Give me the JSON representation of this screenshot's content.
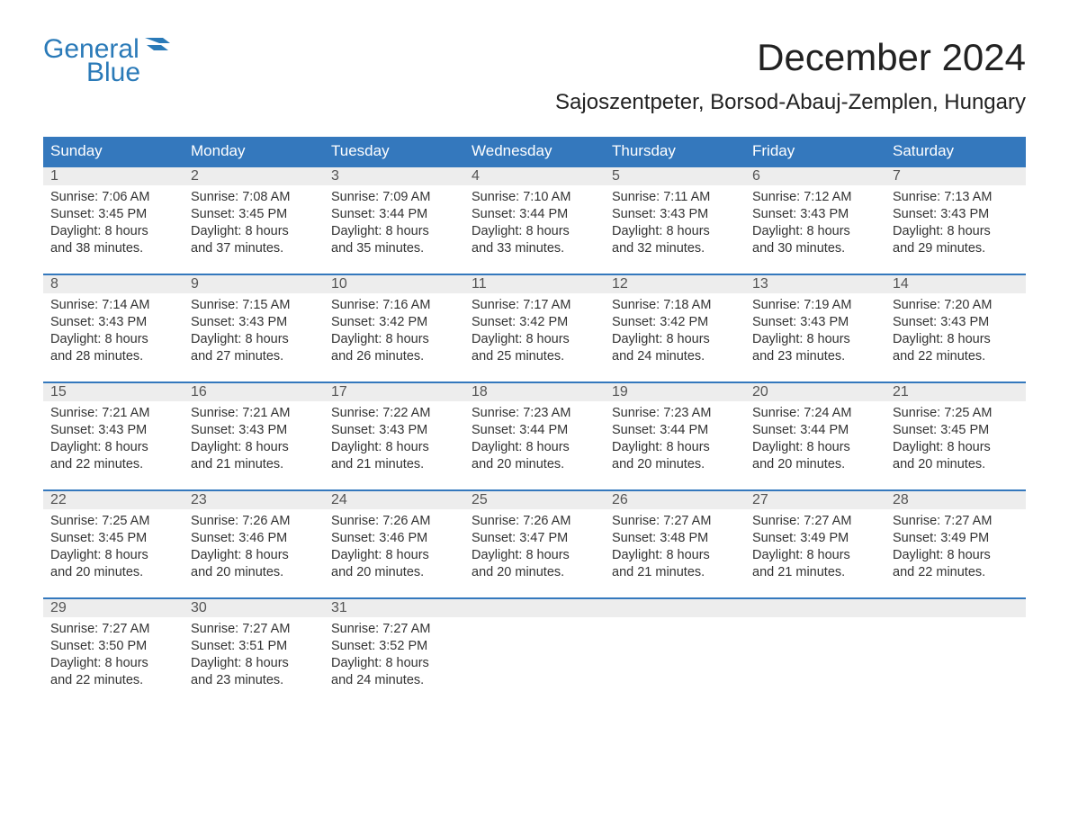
{
  "brand": {
    "word1": "General",
    "word2": "Blue",
    "color": "#2a7ab8"
  },
  "title": "December 2024",
  "location": "Sajoszentpeter, Borsod-Abauj-Zemplen, Hungary",
  "colors": {
    "header_bg": "#3478bd",
    "header_text": "#ffffff",
    "daynum_bg": "#ededed",
    "text": "#333333",
    "page_bg": "#ffffff",
    "rule": "#3478bd"
  },
  "typography": {
    "title_fontsize": 42,
    "location_fontsize": 24,
    "dow_fontsize": 17,
    "body_fontsize": 14.5,
    "font_family": "Arial"
  },
  "daysOfWeek": [
    "Sunday",
    "Monday",
    "Tuesday",
    "Wednesday",
    "Thursday",
    "Friday",
    "Saturday"
  ],
  "weeks": [
    [
      {
        "n": "1",
        "sunrise": "Sunrise: 7:06 AM",
        "sunset": "Sunset: 3:45 PM",
        "dl1": "Daylight: 8 hours",
        "dl2": "and 38 minutes."
      },
      {
        "n": "2",
        "sunrise": "Sunrise: 7:08 AM",
        "sunset": "Sunset: 3:45 PM",
        "dl1": "Daylight: 8 hours",
        "dl2": "and 37 minutes."
      },
      {
        "n": "3",
        "sunrise": "Sunrise: 7:09 AM",
        "sunset": "Sunset: 3:44 PM",
        "dl1": "Daylight: 8 hours",
        "dl2": "and 35 minutes."
      },
      {
        "n": "4",
        "sunrise": "Sunrise: 7:10 AM",
        "sunset": "Sunset: 3:44 PM",
        "dl1": "Daylight: 8 hours",
        "dl2": "and 33 minutes."
      },
      {
        "n": "5",
        "sunrise": "Sunrise: 7:11 AM",
        "sunset": "Sunset: 3:43 PM",
        "dl1": "Daylight: 8 hours",
        "dl2": "and 32 minutes."
      },
      {
        "n": "6",
        "sunrise": "Sunrise: 7:12 AM",
        "sunset": "Sunset: 3:43 PM",
        "dl1": "Daylight: 8 hours",
        "dl2": "and 30 minutes."
      },
      {
        "n": "7",
        "sunrise": "Sunrise: 7:13 AM",
        "sunset": "Sunset: 3:43 PM",
        "dl1": "Daylight: 8 hours",
        "dl2": "and 29 minutes."
      }
    ],
    [
      {
        "n": "8",
        "sunrise": "Sunrise: 7:14 AM",
        "sunset": "Sunset: 3:43 PM",
        "dl1": "Daylight: 8 hours",
        "dl2": "and 28 minutes."
      },
      {
        "n": "9",
        "sunrise": "Sunrise: 7:15 AM",
        "sunset": "Sunset: 3:43 PM",
        "dl1": "Daylight: 8 hours",
        "dl2": "and 27 minutes."
      },
      {
        "n": "10",
        "sunrise": "Sunrise: 7:16 AM",
        "sunset": "Sunset: 3:42 PM",
        "dl1": "Daylight: 8 hours",
        "dl2": "and 26 minutes."
      },
      {
        "n": "11",
        "sunrise": "Sunrise: 7:17 AM",
        "sunset": "Sunset: 3:42 PM",
        "dl1": "Daylight: 8 hours",
        "dl2": "and 25 minutes."
      },
      {
        "n": "12",
        "sunrise": "Sunrise: 7:18 AM",
        "sunset": "Sunset: 3:42 PM",
        "dl1": "Daylight: 8 hours",
        "dl2": "and 24 minutes."
      },
      {
        "n": "13",
        "sunrise": "Sunrise: 7:19 AM",
        "sunset": "Sunset: 3:43 PM",
        "dl1": "Daylight: 8 hours",
        "dl2": "and 23 minutes."
      },
      {
        "n": "14",
        "sunrise": "Sunrise: 7:20 AM",
        "sunset": "Sunset: 3:43 PM",
        "dl1": "Daylight: 8 hours",
        "dl2": "and 22 minutes."
      }
    ],
    [
      {
        "n": "15",
        "sunrise": "Sunrise: 7:21 AM",
        "sunset": "Sunset: 3:43 PM",
        "dl1": "Daylight: 8 hours",
        "dl2": "and 22 minutes."
      },
      {
        "n": "16",
        "sunrise": "Sunrise: 7:21 AM",
        "sunset": "Sunset: 3:43 PM",
        "dl1": "Daylight: 8 hours",
        "dl2": "and 21 minutes."
      },
      {
        "n": "17",
        "sunrise": "Sunrise: 7:22 AM",
        "sunset": "Sunset: 3:43 PM",
        "dl1": "Daylight: 8 hours",
        "dl2": "and 21 minutes."
      },
      {
        "n": "18",
        "sunrise": "Sunrise: 7:23 AM",
        "sunset": "Sunset: 3:44 PM",
        "dl1": "Daylight: 8 hours",
        "dl2": "and 20 minutes."
      },
      {
        "n": "19",
        "sunrise": "Sunrise: 7:23 AM",
        "sunset": "Sunset: 3:44 PM",
        "dl1": "Daylight: 8 hours",
        "dl2": "and 20 minutes."
      },
      {
        "n": "20",
        "sunrise": "Sunrise: 7:24 AM",
        "sunset": "Sunset: 3:44 PM",
        "dl1": "Daylight: 8 hours",
        "dl2": "and 20 minutes."
      },
      {
        "n": "21",
        "sunrise": "Sunrise: 7:25 AM",
        "sunset": "Sunset: 3:45 PM",
        "dl1": "Daylight: 8 hours",
        "dl2": "and 20 minutes."
      }
    ],
    [
      {
        "n": "22",
        "sunrise": "Sunrise: 7:25 AM",
        "sunset": "Sunset: 3:45 PM",
        "dl1": "Daylight: 8 hours",
        "dl2": "and 20 minutes."
      },
      {
        "n": "23",
        "sunrise": "Sunrise: 7:26 AM",
        "sunset": "Sunset: 3:46 PM",
        "dl1": "Daylight: 8 hours",
        "dl2": "and 20 minutes."
      },
      {
        "n": "24",
        "sunrise": "Sunrise: 7:26 AM",
        "sunset": "Sunset: 3:46 PM",
        "dl1": "Daylight: 8 hours",
        "dl2": "and 20 minutes."
      },
      {
        "n": "25",
        "sunrise": "Sunrise: 7:26 AM",
        "sunset": "Sunset: 3:47 PM",
        "dl1": "Daylight: 8 hours",
        "dl2": "and 20 minutes."
      },
      {
        "n": "26",
        "sunrise": "Sunrise: 7:27 AM",
        "sunset": "Sunset: 3:48 PM",
        "dl1": "Daylight: 8 hours",
        "dl2": "and 21 minutes."
      },
      {
        "n": "27",
        "sunrise": "Sunrise: 7:27 AM",
        "sunset": "Sunset: 3:49 PM",
        "dl1": "Daylight: 8 hours",
        "dl2": "and 21 minutes."
      },
      {
        "n": "28",
        "sunrise": "Sunrise: 7:27 AM",
        "sunset": "Sunset: 3:49 PM",
        "dl1": "Daylight: 8 hours",
        "dl2": "and 22 minutes."
      }
    ],
    [
      {
        "n": "29",
        "sunrise": "Sunrise: 7:27 AM",
        "sunset": "Sunset: 3:50 PM",
        "dl1": "Daylight: 8 hours",
        "dl2": "and 22 minutes."
      },
      {
        "n": "30",
        "sunrise": "Sunrise: 7:27 AM",
        "sunset": "Sunset: 3:51 PM",
        "dl1": "Daylight: 8 hours",
        "dl2": "and 23 minutes."
      },
      {
        "n": "31",
        "sunrise": "Sunrise: 7:27 AM",
        "sunset": "Sunset: 3:52 PM",
        "dl1": "Daylight: 8 hours",
        "dl2": "and 24 minutes."
      },
      null,
      null,
      null,
      null
    ]
  ]
}
